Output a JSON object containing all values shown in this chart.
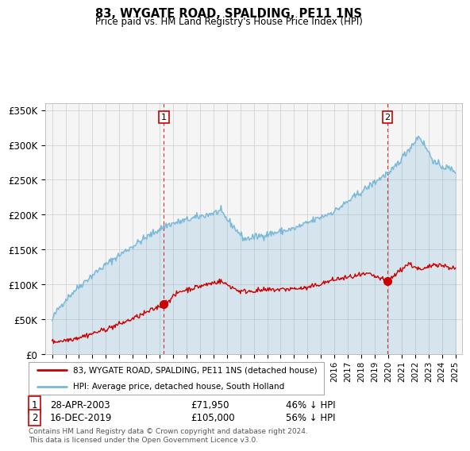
{
  "title": "83, WYGATE ROAD, SPALDING, PE11 1NS",
  "subtitle": "Price paid vs. HM Land Registry's House Price Index (HPI)",
  "legend_line1": "83, WYGATE ROAD, SPALDING, PE11 1NS (detached house)",
  "legend_line2": "HPI: Average price, detached house, South Holland",
  "annotation1": {
    "label": "1",
    "date": "28-APR-2003",
    "price": "£71,950",
    "hpi": "46% ↓ HPI"
  },
  "annotation2": {
    "label": "2",
    "date": "16-DEC-2019",
    "price": "£105,000",
    "hpi": "56% ↓ HPI"
  },
  "footer": "Contains HM Land Registry data © Crown copyright and database right 2024.\nThis data is licensed under the Open Government Licence v3.0.",
  "hpi_color": "#7ab8d9",
  "hpi_fill_color": "#d6eaf8",
  "price_color": "#cc0000",
  "annotation_color": "#cc0000",
  "background_color": "#ffffff",
  "grid_color": "#cccccc",
  "ylim": [
    0,
    360000
  ],
  "yticks": [
    0,
    50000,
    100000,
    150000,
    200000,
    250000,
    300000,
    350000
  ],
  "xlim_start": 1994.5,
  "xlim_end": 2025.5
}
